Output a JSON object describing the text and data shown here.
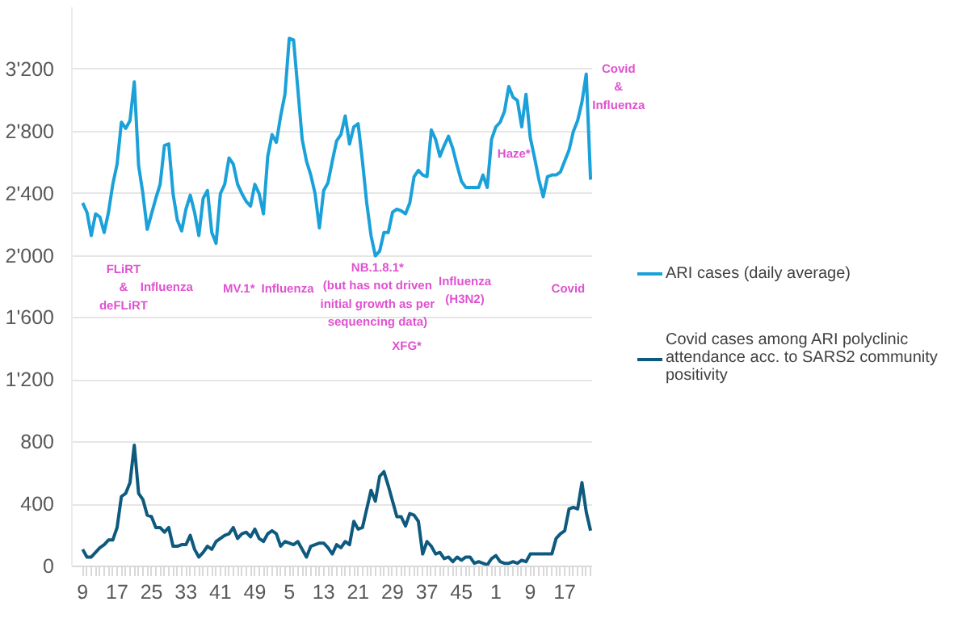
{
  "chart_data": {
    "type": "line",
    "categories": [
      "9",
      null,
      null,
      null,
      null,
      null,
      null,
      null,
      "17",
      null,
      null,
      null,
      null,
      null,
      null,
      null,
      "25",
      null,
      null,
      null,
      null,
      null,
      null,
      null,
      "33",
      null,
      null,
      null,
      null,
      null,
      null,
      null,
      "41",
      null,
      null,
      null,
      null,
      null,
      null,
      null,
      "49",
      null,
      null,
      null,
      null,
      null,
      null,
      null,
      "5",
      null,
      null,
      null,
      null,
      null,
      null,
      null,
      "13",
      null,
      null,
      null,
      null,
      null,
      null,
      null,
      "21",
      null,
      null,
      null,
      null,
      null,
      null,
      null,
      "29",
      null,
      null,
      null,
      null,
      null,
      null,
      null,
      "37",
      null,
      null,
      null,
      null,
      null,
      null,
      null,
      "45",
      null,
      null,
      null,
      null,
      null,
      null,
      null,
      "1",
      null,
      null,
      null,
      null,
      null,
      null,
      null,
      "9",
      null,
      null,
      null,
      null,
      null,
      null,
      null,
      "17",
      null,
      null,
      null,
      null,
      null,
      null
    ],
    "series": [
      {
        "name": "ARI cases (daily average)",
        "color": "#1ba1d9",
        "values": [
          2340,
          2280,
          2130,
          2270,
          2250,
          2150,
          2280,
          2460,
          2590,
          2860,
          2820,
          2870,
          3120,
          2580,
          2400,
          2170,
          2270,
          2370,
          2460,
          2710,
          2720,
          2400,
          2230,
          2160,
          2300,
          2390,
          2280,
          2130,
          2370,
          2420,
          2150,
          2080,
          2400,
          2460,
          2630,
          2590,
          2460,
          2400,
          2350,
          2320,
          2460,
          2400,
          2270,
          2640,
          2780,
          2730,
          2900,
          3040,
          3400,
          3390,
          3070,
          2750,
          2610,
          2520,
          2400,
          2180,
          2420,
          2470,
          2610,
          2740,
          2780,
          2900,
          2720,
          2830,
          2850,
          2610,
          2340,
          2130,
          2000,
          2030,
          2150,
          2150,
          2280,
          2300,
          2290,
          2270,
          2340,
          2510,
          2550,
          2520,
          2510,
          2810,
          2750,
          2640,
          2710,
          2770,
          2690,
          2580,
          2480,
          2440,
          2440,
          2440,
          2440,
          2520,
          2440,
          2750,
          2830,
          2860,
          2930,
          3090,
          3020,
          3000,
          2830,
          3040,
          2760,
          2630,
          2490,
          2380,
          2510,
          2520,
          2520,
          2540,
          2610,
          2680,
          2800,
          2870,
          2990,
          3170,
          2490
        ]
      },
      {
        "name": "Covid cases among ARI polyclinic attendance acc. to SARS2 community positivity",
        "color": "#0e5a7e",
        "values": [
          110,
          60,
          60,
          90,
          120,
          140,
          170,
          170,
          250,
          450,
          470,
          540,
          780,
          470,
          430,
          330,
          320,
          250,
          250,
          220,
          250,
          130,
          130,
          140,
          140,
          200,
          110,
          60,
          90,
          130,
          110,
          160,
          180,
          200,
          210,
          250,
          180,
          210,
          220,
          190,
          240,
          180,
          160,
          210,
          230,
          210,
          130,
          160,
          150,
          140,
          160,
          110,
          60,
          130,
          140,
          150,
          150,
          120,
          80,
          140,
          120,
          160,
          140,
          290,
          240,
          250,
          370,
          490,
          420,
          580,
          610,
          520,
          420,
          320,
          320,
          260,
          340,
          330,
          290,
          80,
          160,
          130,
          80,
          90,
          50,
          60,
          30,
          60,
          40,
          60,
          60,
          20,
          30,
          20,
          10,
          50,
          70,
          30,
          20,
          20,
          30,
          20,
          40,
          30,
          80,
          80,
          80,
          80,
          80,
          80,
          180,
          210,
          230,
          370,
          380,
          370,
          540,
          350,
          230
        ]
      }
    ],
    "ylim": [
      0,
      3600
    ],
    "yticks": [
      0,
      400,
      800,
      {
        "value": 1200,
        "label": "1'200"
      },
      {
        "value": 1600,
        "label": "1'600"
      },
      {
        "value": 2000,
        "label": "2'000"
      },
      {
        "value": 2400,
        "label": "2'400"
      },
      {
        "value": 2800,
        "label": "2'800"
      },
      {
        "value": 3200,
        "label": "3'200"
      }
    ],
    "grid": "y",
    "legend": "right",
    "annotations": [
      "FLiRT\n&\ndeFLiRT",
      "Influenza",
      "MV.1*",
      "Influenza",
      "NB.1.8.1*\n(but has not driven\ninitial growth as per\nsequencing data)",
      "XFG*",
      "Influenza\n(H3N2)",
      "Haze*",
      "Covid",
      "Covid\n&\nInfluenza"
    ]
  }
}
